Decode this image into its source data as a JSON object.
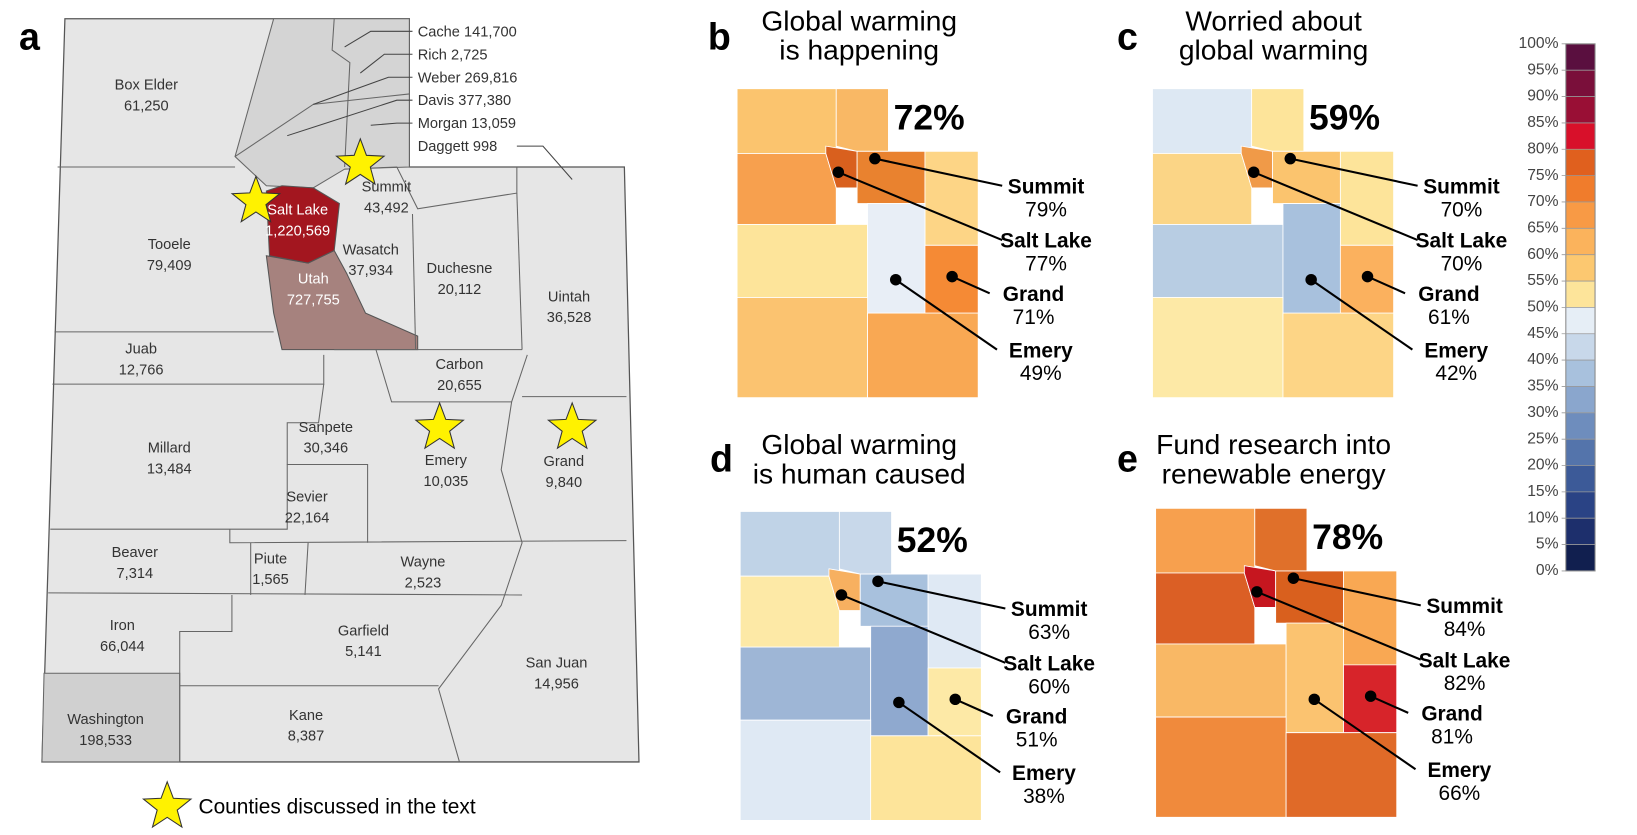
{
  "panel_a": {
    "label": "a",
    "labeled_counties": [
      {
        "name": "Box Elder",
        "population": "61,250"
      },
      {
        "name": "Tooele",
        "population": "79,409"
      },
      {
        "name": "Salt Lake",
        "population": "1,220,569"
      },
      {
        "name": "Summit",
        "population": "43,492"
      },
      {
        "name": "Wasatch",
        "population": "37,934"
      },
      {
        "name": "Utah",
        "population": "727,755"
      },
      {
        "name": "Duchesne",
        "population": "20,112"
      },
      {
        "name": "Uintah",
        "population": "36,528"
      },
      {
        "name": "Juab",
        "population": "12,766"
      },
      {
        "name": "Carbon",
        "population": "20,655"
      },
      {
        "name": "Millard",
        "population": "13,484"
      },
      {
        "name": "Sanpete",
        "population": "30,346"
      },
      {
        "name": "Emery",
        "population": "10,035"
      },
      {
        "name": "Grand",
        "population": "9,840"
      },
      {
        "name": "Sevier",
        "population": "22,164"
      },
      {
        "name": "Beaver",
        "population": "7,314"
      },
      {
        "name": "Piute",
        "population": "1,565"
      },
      {
        "name": "Wayne",
        "population": "2,523"
      },
      {
        "name": "Iron",
        "population": "66,044"
      },
      {
        "name": "Garfield",
        "population": "5,141"
      },
      {
        "name": "San Juan",
        "population": "14,956"
      },
      {
        "name": "Washington",
        "population": "198,533"
      },
      {
        "name": "Kane",
        "population": "8,387"
      }
    ],
    "listed_counties": [
      {
        "name": "Cache",
        "population": "141,700"
      },
      {
        "name": "Rich",
        "population": "2,725"
      },
      {
        "name": "Weber",
        "population": "269,816"
      },
      {
        "name": "Davis",
        "population": "377,380"
      },
      {
        "name": "Morgan",
        "population": "13,059"
      },
      {
        "name": "Daggett",
        "population": "998"
      }
    ],
    "legend": "Counties discussed in the text"
  },
  "panels": [
    {
      "label": "b",
      "title": [
        "Global warming",
        "is happening"
      ],
      "statewide": "72%",
      "callouts": [
        {
          "county": "Summit",
          "value": "79%"
        },
        {
          "county": "Salt Lake",
          "value": "77%"
        },
        {
          "county": "Grand",
          "value": "71%"
        },
        {
          "county": "Emery",
          "value": "49%"
        }
      ]
    },
    {
      "label": "c",
      "title": [
        "Worried about",
        "global warming"
      ],
      "statewide": "59%",
      "callouts": [
        {
          "county": "Summit",
          "value": "70%"
        },
        {
          "county": "Salt Lake",
          "value": "70%"
        },
        {
          "county": "Grand",
          "value": "61%"
        },
        {
          "county": "Emery",
          "value": "42%"
        }
      ]
    },
    {
      "label": "d",
      "title": [
        "Global warming",
        "is human caused"
      ],
      "statewide": "52%",
      "callouts": [
        {
          "county": "Summit",
          "value": "63%"
        },
        {
          "county": "Salt Lake",
          "value": "60%"
        },
        {
          "county": "Grand",
          "value": "51%"
        },
        {
          "county": "Emery",
          "value": "38%"
        }
      ]
    },
    {
      "label": "e",
      "title": [
        "Fund research into",
        "renewable energy"
      ],
      "statewide": "78%",
      "callouts": [
        {
          "county": "Summit",
          "value": "84%"
        },
        {
          "county": "Salt Lake",
          "value": "82%"
        },
        {
          "county": "Grand",
          "value": "81%"
        },
        {
          "county": "Emery",
          "value": "66%"
        }
      ]
    }
  ],
  "colorbar": {
    "ticks": [
      {
        "value": 100,
        "label": "100%"
      },
      {
        "value": 95,
        "label": "95%"
      },
      {
        "value": 90,
        "label": "90%"
      },
      {
        "value": 85,
        "label": "85%"
      },
      {
        "value": 80,
        "label": "80%"
      },
      {
        "value": 75,
        "label": "75%"
      },
      {
        "value": 70,
        "label": "70%"
      },
      {
        "value": 65,
        "label": "65%"
      },
      {
        "value": 60,
        "label": "60%"
      },
      {
        "value": 55,
        "label": "55%"
      },
      {
        "value": 50,
        "label": "50%"
      },
      {
        "value": 45,
        "label": "45%"
      },
      {
        "value": 40,
        "label": "40%"
      },
      {
        "value": 35,
        "label": "35%"
      },
      {
        "value": 30,
        "label": "30%"
      },
      {
        "value": 25,
        "label": "25%"
      },
      {
        "value": 20,
        "label": "20%"
      },
      {
        "value": 15,
        "label": "15%"
      },
      {
        "value": 10,
        "label": "10%"
      },
      {
        "value": 5,
        "label": "5%"
      },
      {
        "value": 0,
        "label": "0%"
      }
    ]
  }
}
